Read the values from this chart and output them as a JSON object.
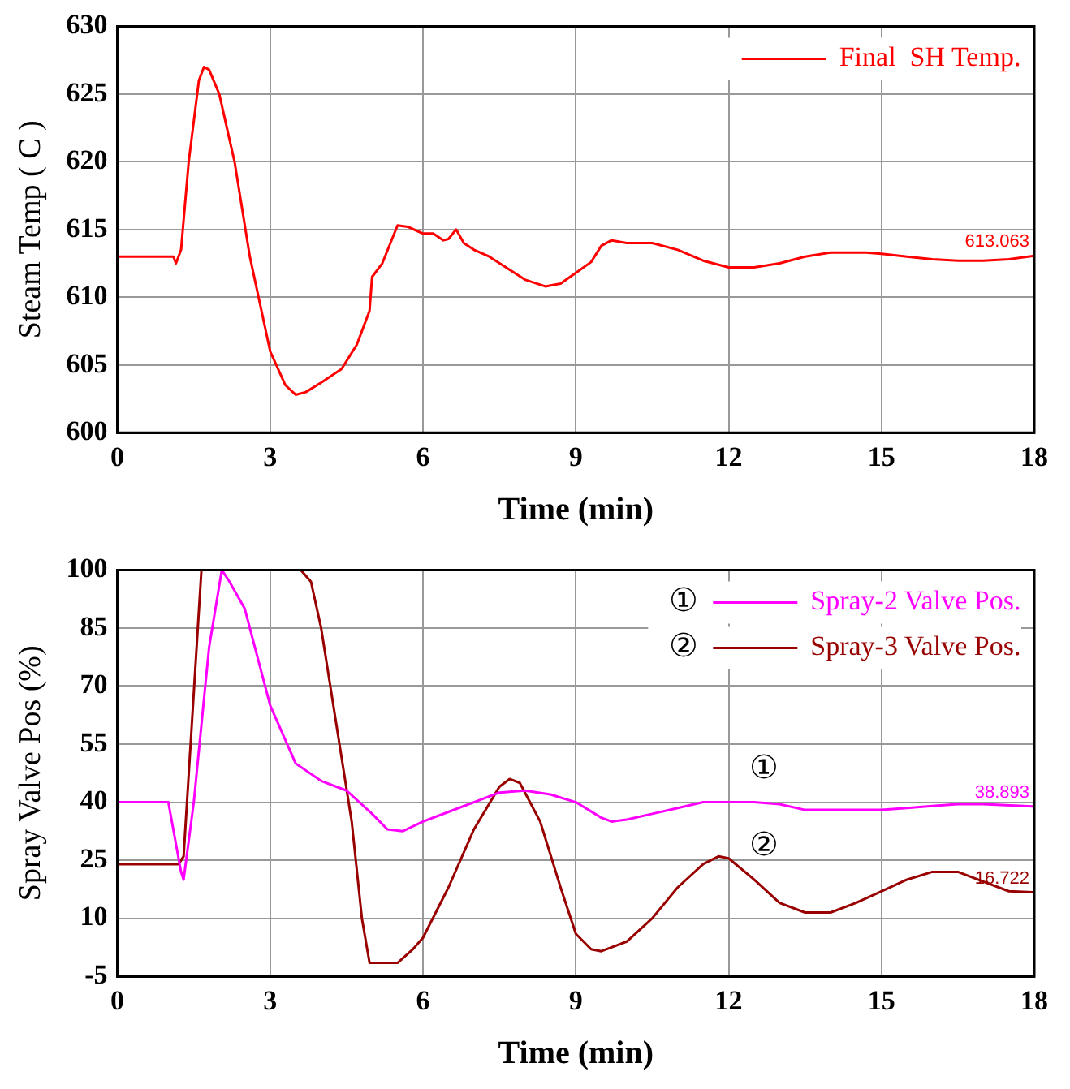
{
  "chart_data": [
    {
      "type": "line",
      "xlabel": "Time (min)",
      "ylabel": "Steam Temp ( C )",
      "xlim": [
        0,
        18
      ],
      "xticks": [
        0,
        3,
        6,
        9,
        12,
        15,
        18
      ],
      "ylim": [
        600,
        630
      ],
      "yticks": [
        600,
        605,
        610,
        615,
        620,
        625,
        630
      ],
      "grid": true,
      "legend": "top right",
      "marker": "none",
      "line_style": "solid",
      "series": [
        {
          "name": "Final  SH Temp.",
          "color": "#ff0000",
          "x": [
            0,
            1.1,
            1.15,
            1.25,
            1.4,
            1.6,
            1.7,
            1.8,
            2,
            2.3,
            2.6,
            3,
            3.3,
            3.5,
            3.7,
            4,
            4.4,
            4.7,
            4.95,
            5,
            5.2,
            5.5,
            5.7,
            6,
            6.2,
            6.4,
            6.5,
            6.65,
            6.8,
            7,
            7.3,
            8,
            8.4,
            8.7,
            9,
            9.3,
            9.5,
            9.7,
            10,
            10.5,
            11,
            11.5,
            12,
            12.5,
            13,
            13.5,
            14,
            14.7,
            15,
            15.5,
            16,
            16.5,
            17,
            17.5,
            18
          ],
          "values": [
            613,
            613,
            612.5,
            613.5,
            620,
            626,
            627,
            626.8,
            625,
            620,
            613,
            606,
            603.5,
            602.8,
            603,
            603.7,
            604.7,
            606.5,
            609,
            611.5,
            612.5,
            615.3,
            615.2,
            614.7,
            614.7,
            614.2,
            614.3,
            615,
            614,
            613.5,
            613,
            611.3,
            610.8,
            611,
            611.8,
            612.6,
            613.8,
            614.2,
            614,
            614,
            613.5,
            612.7,
            612.2,
            612.2,
            612.5,
            613,
            613.3,
            613.3,
            613.2,
            613,
            612.8,
            612.7,
            612.7,
            612.8,
            613.063
          ],
          "value_labels": [
            null,
            null,
            null,
            null,
            null,
            null,
            null,
            null,
            null,
            null,
            null,
            null,
            null,
            null,
            null,
            null,
            null,
            null,
            null,
            null,
            null,
            null,
            null,
            null,
            null,
            null,
            null,
            null,
            null,
            null,
            null,
            null,
            null,
            null,
            null,
            null,
            null,
            null,
            null,
            null,
            null,
            null,
            null,
            null,
            null,
            null,
            null,
            null,
            null,
            null,
            null,
            null,
            null,
            null,
            "613.063"
          ]
        }
      ]
    },
    {
      "type": "line",
      "xlabel": "Time (min)",
      "ylabel": "Spray Valve Pos (%)",
      "xlim": [
        0,
        18
      ],
      "xticks": [
        0,
        3,
        6,
        9,
        12,
        15,
        18
      ],
      "ylim": [
        -5,
        100
      ],
      "yticks": [
        -5,
        10,
        25,
        40,
        55,
        70,
        85,
        100
      ],
      "grid": true,
      "legend": "top right",
      "marker": "none",
      "line_style": "solid",
      "annotations": [
        "①",
        "②"
      ],
      "series": [
        {
          "name": "Spray-2 Valve Pos.",
          "color": "#ff00ff",
          "x": [
            0,
            1,
            1.25,
            1.3,
            1.5,
            1.8,
            2.05,
            2.2,
            2.5,
            2.8,
            3,
            3.5,
            4,
            4.5,
            5,
            5.3,
            5.6,
            6,
            6.5,
            7,
            7.5,
            8,
            8.5,
            9,
            9.5,
            9.7,
            10,
            10.5,
            11,
            11.5,
            12,
            12.5,
            13,
            13.5,
            14,
            15,
            15.5,
            16,
            16.5,
            17,
            18
          ],
          "values": [
            40,
            40,
            22,
            20,
            40,
            80,
            100,
            97,
            90,
            75,
            65,
            50,
            45.5,
            43,
            37,
            33,
            32.5,
            35,
            37.5,
            40,
            42.5,
            43,
            42,
            40,
            36,
            35,
            35.5,
            37,
            38.5,
            40,
            40,
            40,
            39.5,
            38,
            38,
            38,
            38.5,
            39,
            39.5,
            39.5,
            38.893
          ],
          "value_labels": [
            null,
            null,
            null,
            null,
            null,
            null,
            null,
            null,
            null,
            null,
            null,
            null,
            null,
            null,
            null,
            null,
            null,
            null,
            null,
            null,
            null,
            null,
            null,
            null,
            null,
            null,
            null,
            null,
            null,
            null,
            null,
            null,
            null,
            null,
            null,
            null,
            null,
            null,
            null,
            null,
            "38.893"
          ]
        },
        {
          "name": "Spray-3 Valve Pos.",
          "color": "#990000",
          "x": [
            0,
            1.2,
            1.3,
            1.65,
            3.6,
            3.8,
            4,
            4.3,
            4.6,
            4.8,
            4.95,
            5.5,
            5.8,
            6,
            6.5,
            7,
            7.5,
            7.7,
            7.9,
            8.3,
            8.7,
            9,
            9.3,
            9.5,
            10,
            10.5,
            11,
            11.5,
            11.8,
            12,
            12.5,
            13,
            13.5,
            14,
            14.5,
            15,
            15.5,
            16,
            16.5,
            17,
            17.5,
            18
          ],
          "values": [
            24,
            24,
            26,
            100,
            100,
            97,
            85,
            60,
            35,
            10,
            -1.5,
            -1.5,
            2,
            5,
            18,
            33,
            44,
            46,
            45,
            35,
            18,
            6,
            2,
            1.5,
            4,
            10,
            18,
            24,
            26,
            25.5,
            20,
            14,
            11.5,
            11.5,
            14,
            17,
            20,
            22,
            22,
            19.5,
            17,
            16.722
          ],
          "value_labels": [
            null,
            null,
            null,
            null,
            null,
            null,
            null,
            null,
            null,
            null,
            null,
            null,
            null,
            null,
            null,
            null,
            null,
            null,
            null,
            null,
            null,
            null,
            null,
            null,
            null,
            null,
            null,
            null,
            null,
            null,
            null,
            null,
            null,
            null,
            null,
            null,
            null,
            null,
            null,
            null,
            null,
            "16.722"
          ]
        }
      ]
    }
  ]
}
